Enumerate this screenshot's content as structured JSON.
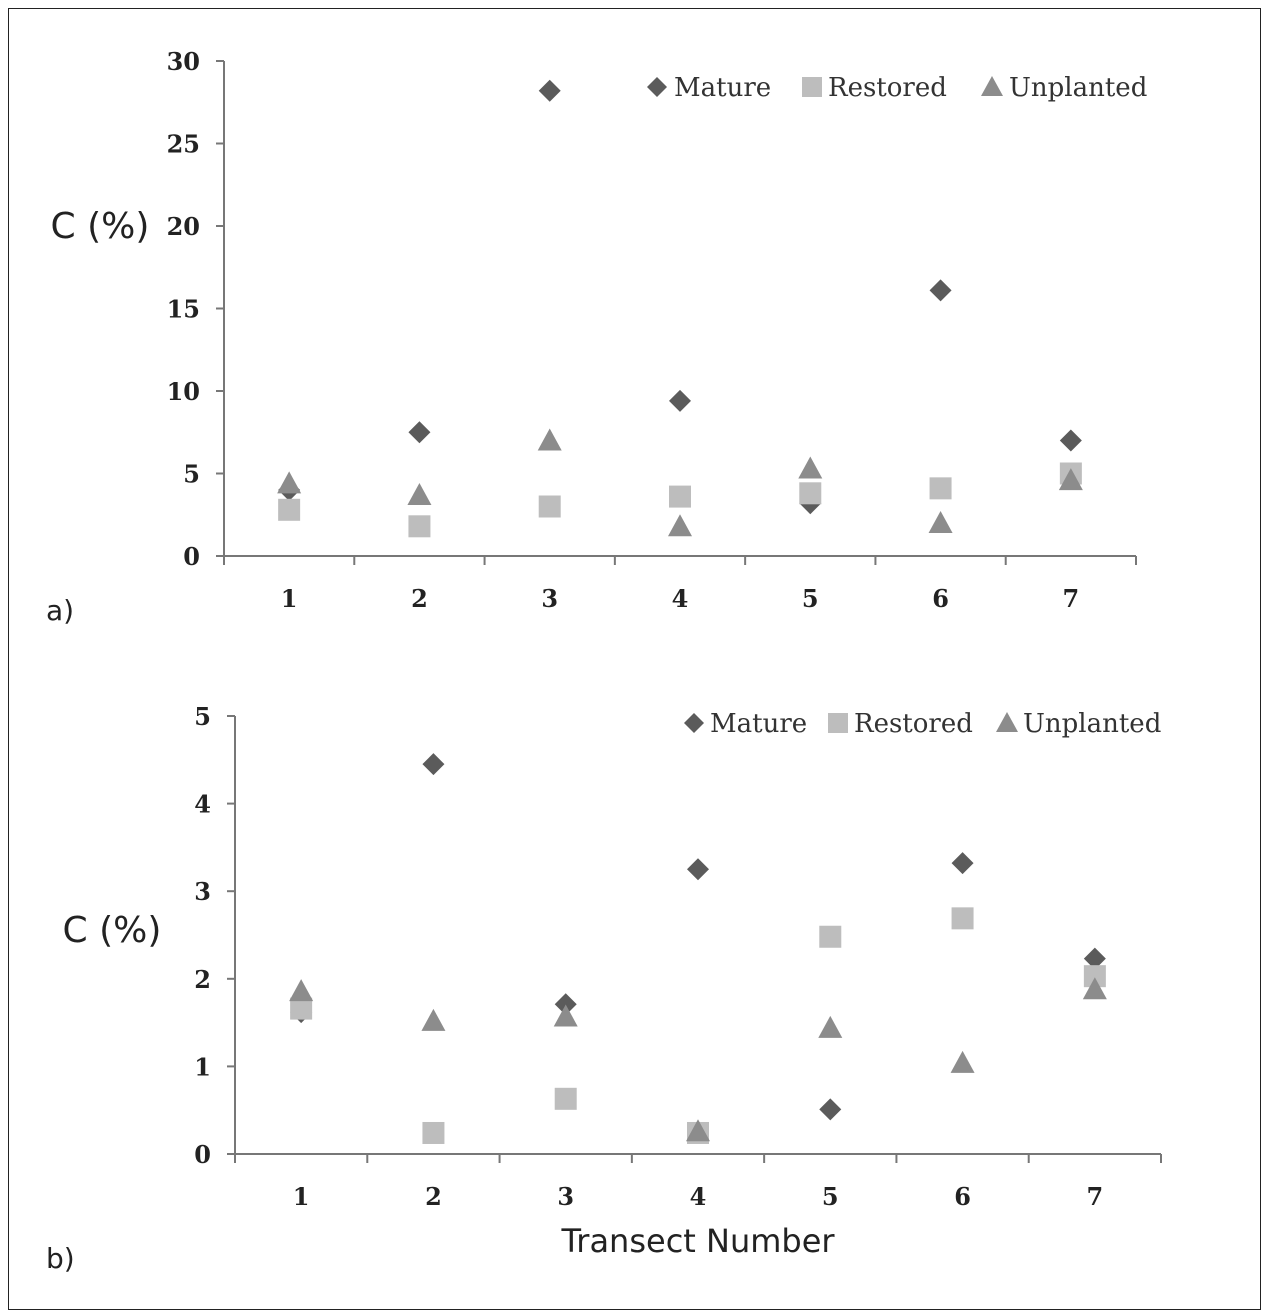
{
  "colors": {
    "Mature": "#5b5b5b",
    "Restored": "#bdbdbd",
    "Unplanted": "#8c8c8c",
    "axis": "#777777"
  },
  "chart_data": [
    {
      "type": "scatter",
      "panel_label": "a)",
      "title": "",
      "xlabel": "",
      "ylabel": "C (%)",
      "x": [
        1,
        2,
        3,
        4,
        5,
        6,
        7
      ],
      "ylim": [
        0,
        30
      ],
      "yticks": [
        0,
        5,
        10,
        15,
        20,
        25,
        30
      ],
      "legend_position": "top-right",
      "series": [
        {
          "name": "Mature",
          "marker": "diamond",
          "values": [
            4.0,
            7.5,
            28.2,
            9.4,
            3.2,
            16.1,
            7.0
          ]
        },
        {
          "name": "Restored",
          "marker": "square",
          "values": [
            2.8,
            1.8,
            3.0,
            3.6,
            3.8,
            4.1,
            5.0
          ]
        },
        {
          "name": "Unplanted",
          "marker": "triangle",
          "values": [
            4.4,
            3.7,
            7.0,
            1.8,
            5.3,
            2.0,
            4.6
          ]
        }
      ]
    },
    {
      "type": "scatter",
      "panel_label": "b)",
      "title": "",
      "xlabel": "Transect Number",
      "ylabel": "C (%)",
      "x": [
        1,
        2,
        3,
        4,
        5,
        6,
        7
      ],
      "ylim": [
        0,
        5
      ],
      "yticks": [
        0,
        1,
        2,
        3,
        4,
        5
      ],
      "legend_position": "top-right",
      "series": [
        {
          "name": "Mature",
          "marker": "diamond",
          "values": [
            1.62,
            4.45,
            1.71,
            3.25,
            0.51,
            3.32,
            2.23
          ]
        },
        {
          "name": "Restored",
          "marker": "square",
          "values": [
            1.66,
            0.24,
            0.63,
            0.24,
            2.48,
            2.69,
            2.03
          ]
        },
        {
          "name": "Unplanted",
          "marker": "triangle",
          "values": [
            1.86,
            1.52,
            1.57,
            0.26,
            1.44,
            1.04,
            1.88
          ]
        }
      ]
    }
  ]
}
